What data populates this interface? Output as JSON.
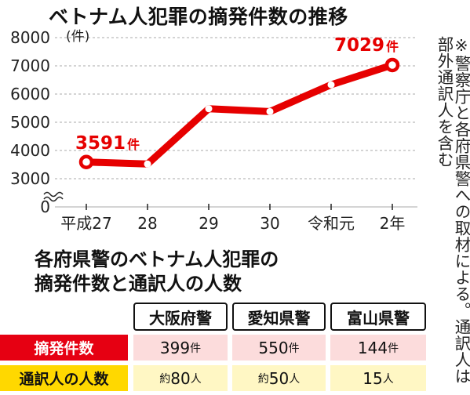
{
  "title": "ベトナム人犯罪の摘発件数の推移",
  "note": "※警察庁と各府県警への取材による。通訳人は部外通訳人を含む",
  "chart_data": {
    "type": "line",
    "unit_label": "(件)",
    "x": [
      "平成27",
      "28",
      "29",
      "30",
      "令和元",
      "2年"
    ],
    "values": [
      3591,
      3520,
      5480,
      5380,
      6330,
      7029
    ],
    "y_ticks": [
      0,
      3000,
      4000,
      5000,
      6000,
      7000,
      8000
    ],
    "ylim": [
      3000,
      8000
    ],
    "axis_break": true,
    "grid": true,
    "annotations": [
      {
        "index": 0,
        "number": "3591",
        "unit": "件"
      },
      {
        "index": 5,
        "number": "7029",
        "unit": "件"
      }
    ],
    "colors": {
      "line": "#e60000",
      "grid": "#aaaaaa"
    }
  },
  "table": {
    "title_line1": "各府県警のベトナム人犯罪の",
    "title_line2": "摘発件数と通訳人の人数",
    "columns": [
      "大阪府警",
      "愛知県警",
      "富山県警"
    ],
    "rows": [
      {
        "label": "摘発件数",
        "cells": [
          "399件",
          "550件",
          "144件"
        ]
      },
      {
        "label": "通訳人の人数",
        "cells": [
          "約80人",
          "約50人",
          "15人"
        ]
      }
    ],
    "colors": {
      "row1_label_bg": "#e60012",
      "row1_cell_bg": "#fcdcdc",
      "row2_label_bg": "#ffd800",
      "row2_cell_bg": "#fff7c4"
    }
  }
}
